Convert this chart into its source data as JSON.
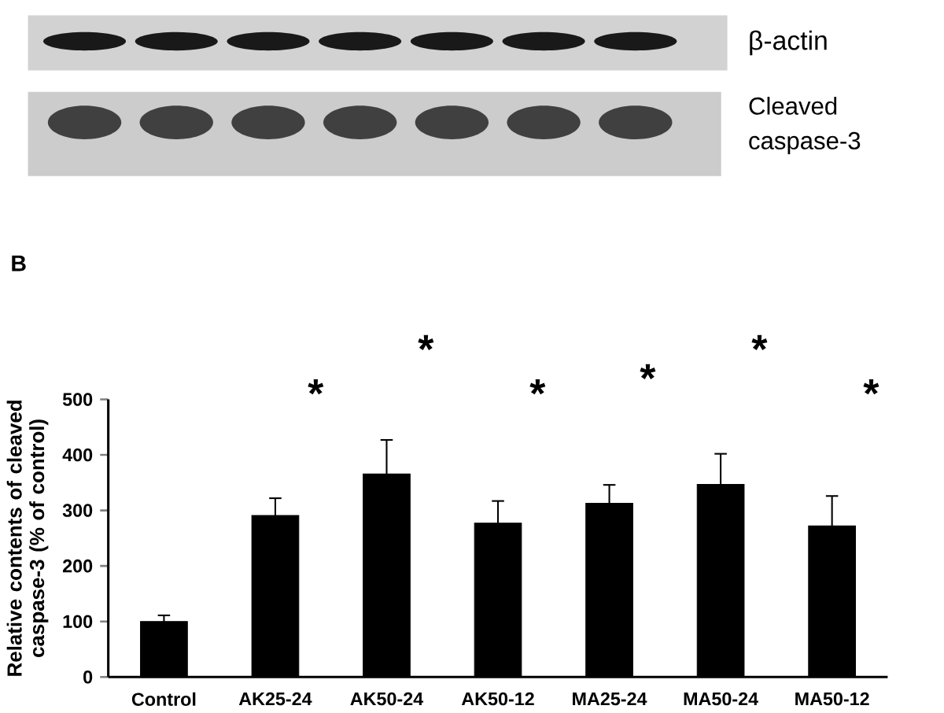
{
  "chart_data": {
    "type": "bar",
    "ylabel": "Relative contents of cleaved caspase-3 (% of control)",
    "categories": [
      "Control",
      "AK25-24",
      "AK50-24",
      "AK50-12",
      "MA25-24",
      "MA50-24",
      "MA50-12"
    ],
    "values": [
      100,
      291,
      366,
      277,
      313,
      347,
      272
    ],
    "errors": [
      11,
      31,
      61,
      40,
      33,
      55,
      54
    ],
    "color": "#000000",
    "ylim": [
      0,
      500
    ],
    "yticks": [
      0,
      100,
      200,
      300,
      400,
      500
    ],
    "annotations": [
      "β-actin",
      "Cleaved caspase-3",
      "B",
      "*",
      "*",
      "*",
      "*",
      "*",
      "*"
    ]
  }
}
